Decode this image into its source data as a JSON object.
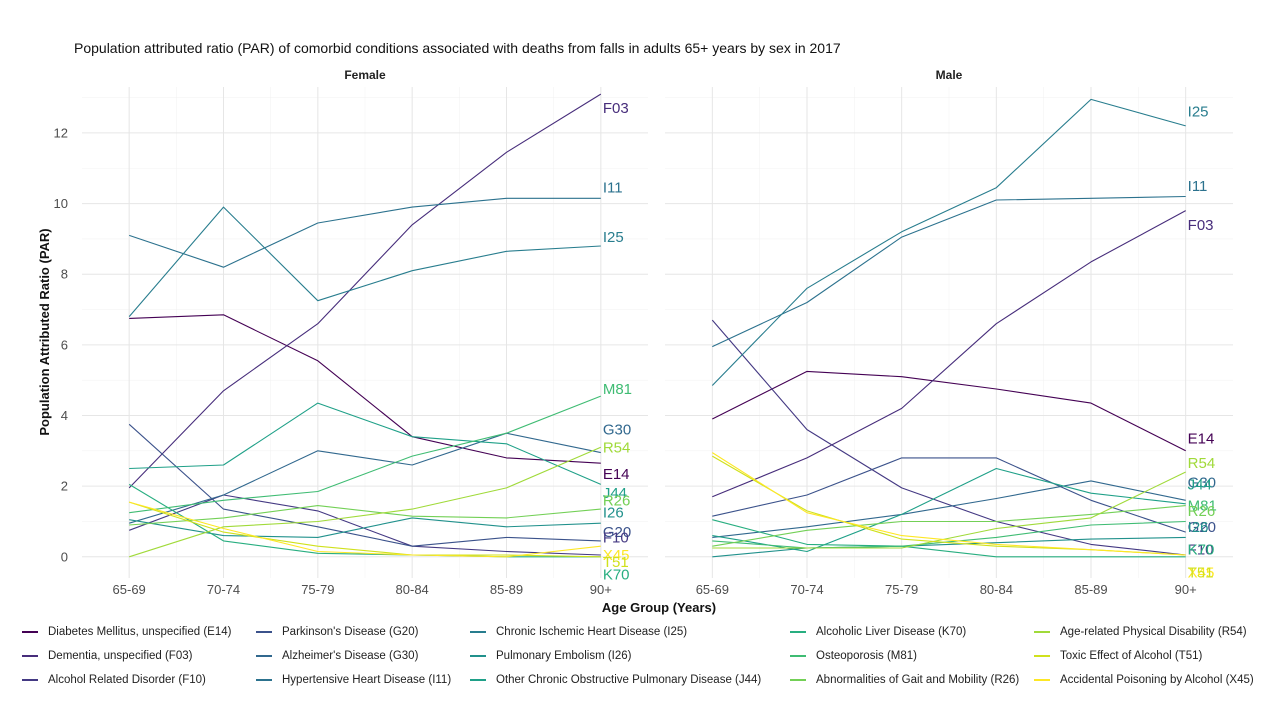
{
  "chart_data": {
    "type": "line",
    "title": "Population attributed ratio (PAR) of comorbid conditions associated with deaths from falls in adults 65+ years by sex in 2017",
    "xlabel": "Age Group (Years)",
    "ylabel": "Population Attributed Ratio (PAR)",
    "categories": [
      "65-69",
      "70-74",
      "75-79",
      "80-84",
      "85-89",
      "90+"
    ],
    "yticks": [
      0,
      2,
      4,
      6,
      8,
      10,
      12
    ],
    "ylim": [
      -0.6,
      13.3
    ],
    "grid": true,
    "legend_position": "bottom",
    "series_meta": [
      {
        "code": "E14",
        "name": "Diabetes Mellitus, unspecified (E14)",
        "color": "#440154"
      },
      {
        "code": "F03",
        "name": "Dementia, unspecified (F03)",
        "color": "#472d7b"
      },
      {
        "code": "F10",
        "name": "Alcohol Related Disorder (F10)",
        "color": "#443983"
      },
      {
        "code": "G20",
        "name": "Parkinson's Disease (G20)",
        "color": "#3b528b"
      },
      {
        "code": "G30",
        "name": "Alzheimer's Disease (G30)",
        "color": "#31688e"
      },
      {
        "code": "I11",
        "name": "Hypertensive Heart Disease (I11)",
        "color": "#2c728e"
      },
      {
        "code": "I25",
        "name": "Chronic Ischemic Heart Disease (I25)",
        "color": "#287d8e"
      },
      {
        "code": "I26",
        "name": "Pulmonary Embolism (I26)",
        "color": "#21918c"
      },
      {
        "code": "J44",
        "name": "Other Chronic Obstructive Pulmonary Disease (J44)",
        "color": "#1fa088"
      },
      {
        "code": "K70",
        "name": "Alcoholic Liver Disease (K70)",
        "color": "#28ae80"
      },
      {
        "code": "M81",
        "name": "Osteoporosis (M81)",
        "color": "#3fbc73"
      },
      {
        "code": "R26",
        "name": "Abnormalities of Gait and Mobility (R26)",
        "color": "#73d056"
      },
      {
        "code": "R54",
        "name": "Age-related Physical Disability (R54)",
        "color": "#a0da39"
      },
      {
        "code": "T51",
        "name": "Toxic Effect of Alcohol (T51)",
        "color": "#d0e11c"
      },
      {
        "code": "X45",
        "name": "Accidental Poisoning by Alcohol (X45)",
        "color": "#fde725"
      }
    ],
    "panels": [
      {
        "name": "Female",
        "series": [
          {
            "code": "E14",
            "values": [
              6.75,
              6.85,
              5.55,
              3.4,
              2.8,
              2.65
            ]
          },
          {
            "code": "F03",
            "values": [
              1.95,
              4.7,
              6.6,
              9.4,
              11.45,
              13.1
            ]
          },
          {
            "code": "F10",
            "values": [
              0.75,
              1.75,
              1.3,
              0.3,
              0.15,
              0.05
            ]
          },
          {
            "code": "G20",
            "values": [
              3.75,
              1.35,
              0.85,
              0.3,
              0.55,
              0.45
            ]
          },
          {
            "code": "G30",
            "values": [
              0.95,
              1.75,
              3.0,
              2.6,
              3.5,
              2.95
            ]
          },
          {
            "code": "I11",
            "values": [
              9.1,
              8.2,
              9.45,
              9.9,
              10.15,
              10.15
            ]
          },
          {
            "code": "I25",
            "values": [
              6.8,
              9.9,
              7.25,
              8.1,
              8.65,
              8.8
            ]
          },
          {
            "code": "I26",
            "values": [
              1.05,
              0.6,
              0.55,
              1.1,
              0.85,
              0.95
            ]
          },
          {
            "code": "J44",
            "values": [
              2.5,
              2.6,
              4.35,
              3.4,
              3.2,
              2.05
            ]
          },
          {
            "code": "K70",
            "values": [
              2.05,
              0.45,
              0.1,
              0.05,
              0.0,
              0.0
            ]
          },
          {
            "code": "M81",
            "values": [
              1.25,
              1.6,
              1.85,
              2.85,
              3.5,
              4.55
            ]
          },
          {
            "code": "R26",
            "values": [
              0.9,
              1.1,
              1.45,
              1.15,
              1.1,
              1.35
            ]
          },
          {
            "code": "R54",
            "values": [
              0.0,
              0.85,
              1.0,
              1.35,
              1.95,
              3.1
            ]
          },
          {
            "code": "T51",
            "values": [
              1.55,
              0.7,
              0.3,
              0.05,
              0.05,
              0.0
            ]
          },
          {
            "code": "X45",
            "values": [
              1.55,
              0.8,
              0.15,
              0.05,
              0.0,
              0.3
            ]
          }
        ],
        "end_labels": [
          {
            "code": "F03",
            "text": "F03",
            "y": 12.7
          },
          {
            "code": "I11",
            "text": "I11",
            "y": 10.45
          },
          {
            "code": "I25",
            "text": "I25",
            "y": 9.05
          },
          {
            "code": "M81",
            "text": "M81",
            "y": 4.75
          },
          {
            "code": "G30",
            "text": "G30",
            "y": 3.6
          },
          {
            "code": "R54",
            "text": "R54",
            "y": 3.1
          },
          {
            "code": "E14",
            "text": "E14",
            "y": 2.35
          },
          {
            "code": "J44",
            "text": "J44",
            "y": 1.8
          },
          {
            "code": "R26",
            "text": "R26",
            "y": 1.6
          },
          {
            "code": "I26",
            "text": "I26",
            "y": 1.25
          },
          {
            "code": "G20",
            "text": "G20",
            "y": 0.7
          },
          {
            "code": "F10",
            "text": "F10",
            "y": 0.55
          },
          {
            "code": "X45",
            "text": "X45",
            "y": 0.05
          },
          {
            "code": "T51",
            "text": "T51",
            "y": -0.15
          },
          {
            "code": "K70",
            "text": "K70",
            "y": -0.5
          }
        ]
      },
      {
        "name": "Male",
        "series": [
          {
            "code": "E14",
            "values": [
              3.9,
              5.25,
              5.1,
              4.75,
              4.35,
              3.0
            ]
          },
          {
            "code": "F03",
            "values": [
              1.7,
              2.8,
              4.2,
              6.6,
              8.35,
              9.8
            ]
          },
          {
            "code": "F10",
            "values": [
              6.7,
              3.6,
              1.95,
              1.0,
              0.35,
              0.05
            ]
          },
          {
            "code": "G20",
            "values": [
              1.15,
              1.75,
              2.8,
              2.8,
              1.6,
              0.7
            ]
          },
          {
            "code": "G30",
            "values": [
              0.55,
              0.85,
              1.2,
              1.65,
              2.15,
              1.6
            ]
          },
          {
            "code": "I11",
            "values": [
              5.95,
              7.2,
              9.05,
              10.1,
              10.15,
              10.2
            ]
          },
          {
            "code": "I25",
            "values": [
              4.85,
              7.6,
              9.2,
              10.45,
              12.95,
              12.2
            ]
          },
          {
            "code": "I26",
            "values": [
              0.0,
              0.25,
              0.3,
              0.4,
              0.5,
              0.55
            ]
          },
          {
            "code": "J44",
            "values": [
              0.6,
              0.15,
              1.2,
              2.5,
              1.8,
              1.5
            ]
          },
          {
            "code": "K70",
            "values": [
              1.05,
              0.35,
              0.3,
              0.0,
              0.0,
              0.0
            ]
          },
          {
            "code": "M81",
            "values": [
              0.45,
              0.25,
              0.3,
              0.55,
              0.9,
              1.0
            ]
          },
          {
            "code": "R26",
            "values": [
              0.3,
              0.75,
              1.0,
              1.0,
              1.2,
              1.45
            ]
          },
          {
            "code": "R54",
            "values": [
              0.25,
              0.25,
              0.25,
              0.8,
              1.1,
              2.4
            ]
          },
          {
            "code": "T51",
            "values": [
              2.85,
              1.3,
              0.5,
              0.3,
              0.2,
              0.05
            ]
          },
          {
            "code": "X45",
            "values": [
              2.95,
              1.25,
              0.6,
              0.35,
              0.2,
              0.05
            ]
          }
        ],
        "end_labels": [
          {
            "code": "I25",
            "text": "I25",
            "y": 12.6
          },
          {
            "code": "I11",
            "text": "I11",
            "y": 10.5
          },
          {
            "code": "F03",
            "text": "F03",
            "y": 9.4
          },
          {
            "code": "E14",
            "text": "E14",
            "y": 3.35
          },
          {
            "code": "R54",
            "text": "R54",
            "y": 2.65
          },
          {
            "code": "G30",
            "text": "G30",
            "y": 2.1
          },
          {
            "code": "J44",
            "text": "J44",
            "y": 2.05
          },
          {
            "code": "M81",
            "text": "M81",
            "y": 1.45
          },
          {
            "code": "R26",
            "text": "R26",
            "y": 1.3
          },
          {
            "code": "G20",
            "text": "G20",
            "y": 0.85
          },
          {
            "code": "I26",
            "text": "I26",
            "y": 0.85
          },
          {
            "code": "F10",
            "text": "F10",
            "y": 0.2
          },
          {
            "code": "K70",
            "text": "K70",
            "y": 0.2
          },
          {
            "code": "X45",
            "text": "X45",
            "y": -0.45
          },
          {
            "code": "T51",
            "text": "T51",
            "y": -0.45
          }
        ]
      }
    ]
  }
}
